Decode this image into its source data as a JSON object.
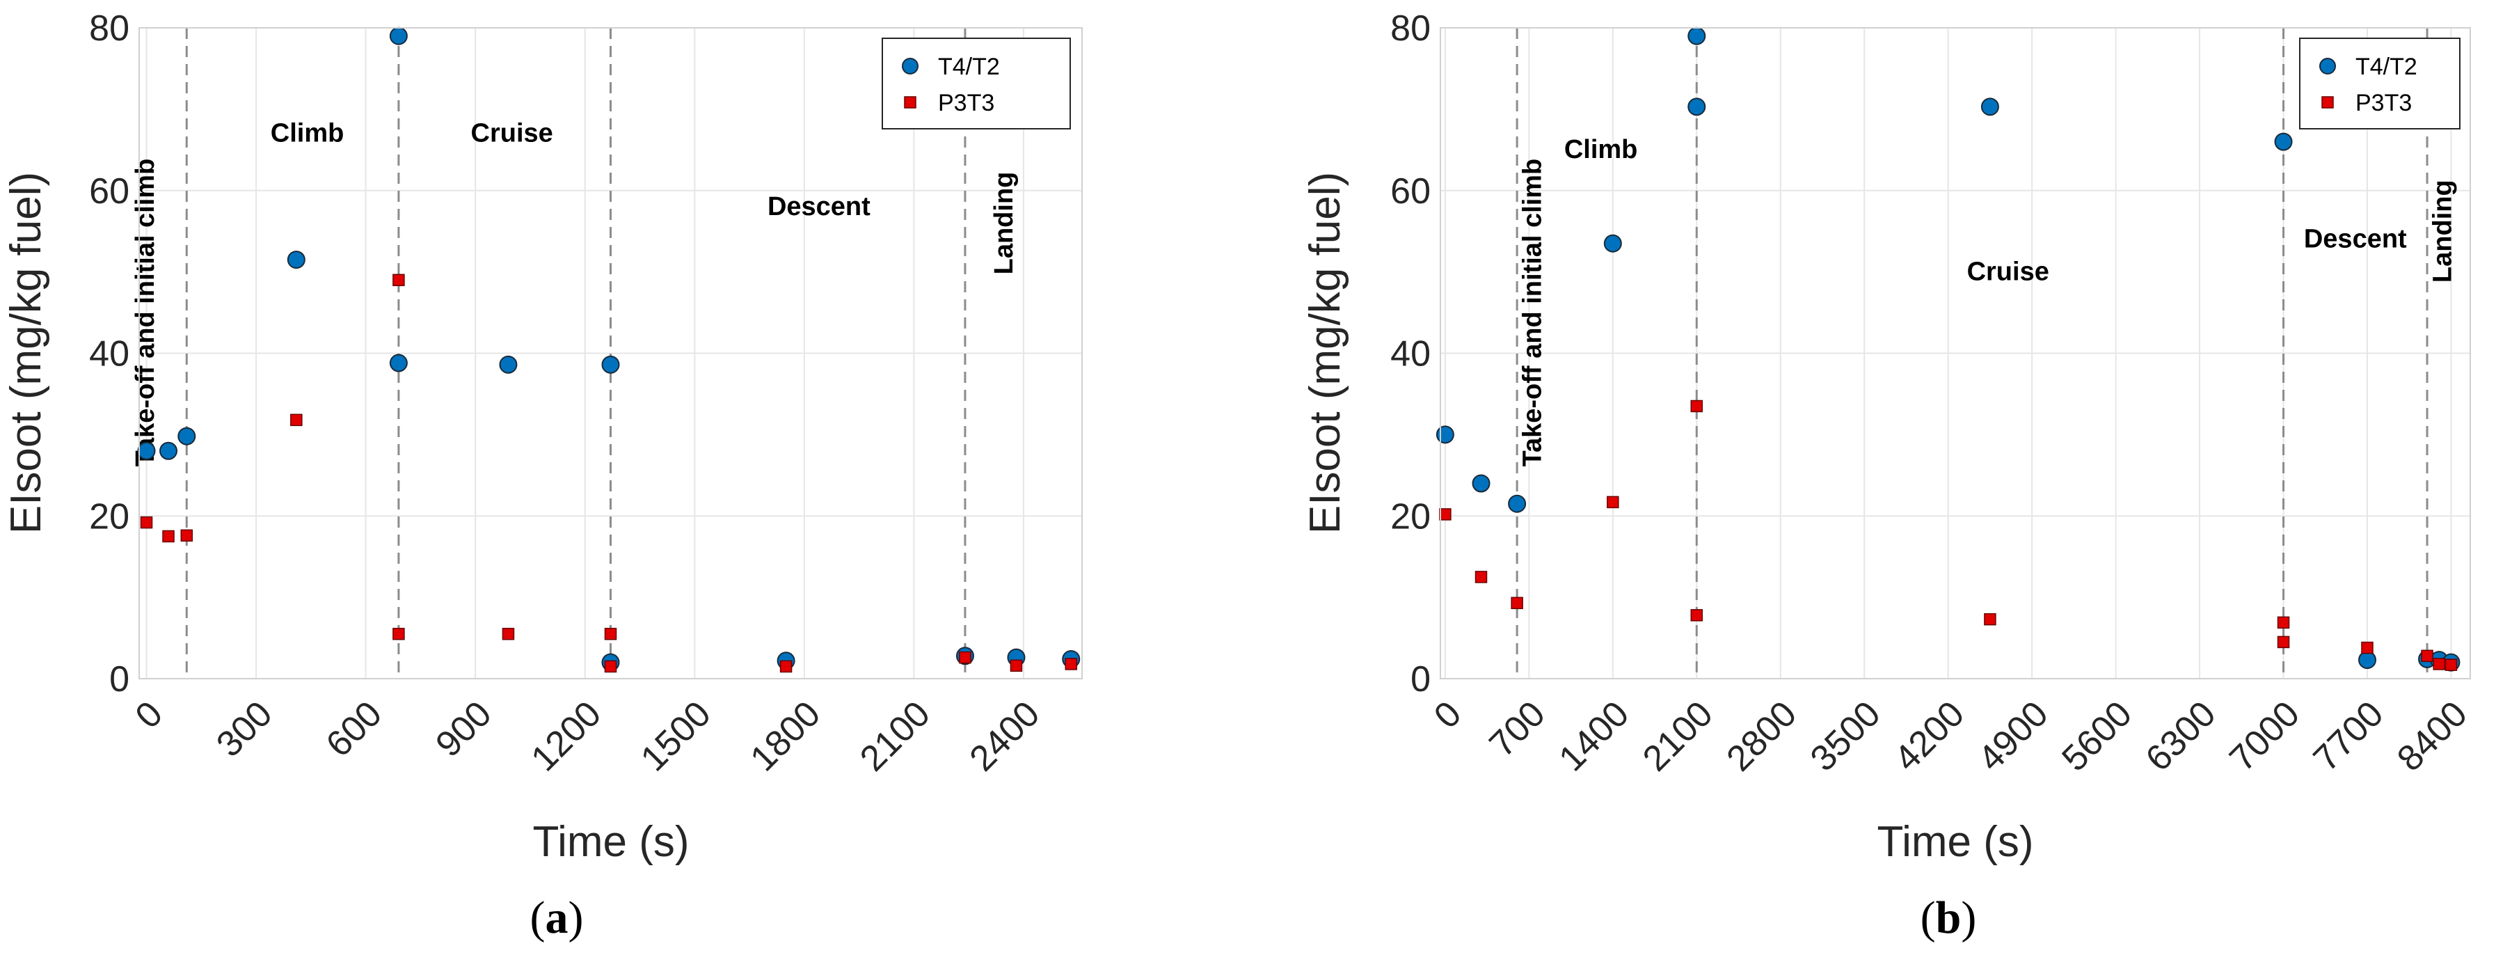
{
  "chart_data": [
    {
      "type": "scatter",
      "caption_open": "(",
      "caption_letter": "a",
      "caption_close": ")",
      "xlabel": "Time (s)",
      "ylabel": "EIsoot (mg/kg fuel)",
      "xlim": [
        -20,
        2560
      ],
      "ylim": [
        0,
        80
      ],
      "xticks": [
        0,
        300,
        600,
        900,
        1200,
        1500,
        1800,
        2100,
        2400
      ],
      "yticks": [
        0,
        20,
        40,
        60,
        80
      ],
      "grid": true,
      "legend_position": "top-right",
      "phase_lines": [
        110,
        690,
        1270,
        2240
      ],
      "phases": [
        {
          "label": "Take-off and initial climb",
          "x": 20,
          "y": 45,
          "vertical": true
        },
        {
          "label": "Climb",
          "x": 440,
          "y": 66,
          "vertical": false
        },
        {
          "label": "Cruise",
          "x": 1000,
          "y": 66,
          "vertical": false
        },
        {
          "label": "Descent",
          "x": 1840,
          "y": 57,
          "vertical": false
        },
        {
          "label": "Landing",
          "x": 2370,
          "y": 56,
          "vertical": true
        }
      ],
      "series": [
        {
          "name": "T4/T2",
          "marker": "circle",
          "color": "#0072BD",
          "x": [
            0,
            60,
            110,
            410,
            690,
            690,
            990,
            1270,
            1270,
            1750,
            2240,
            2380,
            2530
          ],
          "y": [
            28,
            28,
            29.8,
            51.5,
            79,
            38.8,
            38.6,
            38.6,
            2,
            2.2,
            2.8,
            2.6,
            2.4
          ]
        },
        {
          "name": "P3T3",
          "marker": "square",
          "color": "#E00000",
          "x": [
            0,
            60,
            110,
            410,
            690,
            690,
            990,
            1270,
            1270,
            1750,
            2240,
            2380,
            2530
          ],
          "y": [
            19.2,
            17.5,
            17.6,
            31.8,
            49,
            5.5,
            5.5,
            5.5,
            1.5,
            1.5,
            2.6,
            1.6,
            1.8
          ]
        }
      ]
    },
    {
      "type": "scatter",
      "caption_open": "(",
      "caption_letter": "b",
      "caption_close": ")",
      "xlabel": "Time (s)",
      "ylabel": "EIsoot (mg/kg fuel)",
      "xlim": [
        -40,
        8560
      ],
      "ylim": [
        0,
        80
      ],
      "xticks": [
        0,
        700,
        1400,
        2100,
        2800,
        3500,
        4200,
        4900,
        5600,
        6300,
        7000,
        7700,
        8400
      ],
      "yticks": [
        0,
        20,
        40,
        60,
        80
      ],
      "grid": true,
      "legend_position": "top-right",
      "phase_lines": [
        600,
        2100,
        7000,
        8200
      ],
      "phases": [
        {
          "label": "Take-off and initial climb",
          "x": 800,
          "y": 45,
          "vertical": true
        },
        {
          "label": "Climb",
          "x": 1300,
          "y": 64,
          "vertical": false
        },
        {
          "label": "Cruise",
          "x": 4700,
          "y": 49,
          "vertical": false
        },
        {
          "label": "Descent",
          "x": 7600,
          "y": 53,
          "vertical": false
        },
        {
          "label": "Landing",
          "x": 8400,
          "y": 55,
          "vertical": true
        }
      ],
      "series": [
        {
          "name": "T4/T2",
          "marker": "circle",
          "color": "#0072BD",
          "x": [
            0,
            300,
            600,
            2100,
            2100,
            4550,
            7000,
            7700,
            8200,
            8300,
            8400,
            1400
          ],
          "y": [
            30,
            24,
            21.5,
            79,
            70.3,
            70.3,
            66,
            2.3,
            2.4,
            2.3,
            2,
            53.5
          ]
        },
        {
          "name": "P3T3",
          "marker": "square",
          "color": "#E00000",
          "x": [
            0,
            300,
            600,
            1400,
            2100,
            2100,
            4550,
            7000,
            7000,
            7700,
            8200,
            8300,
            8400
          ],
          "y": [
            20.2,
            12.5,
            9.3,
            21.7,
            33.5,
            7.8,
            7.3,
            6.9,
            4.5,
            3.8,
            2.8,
            1.8,
            1.7
          ]
        }
      ]
    }
  ]
}
